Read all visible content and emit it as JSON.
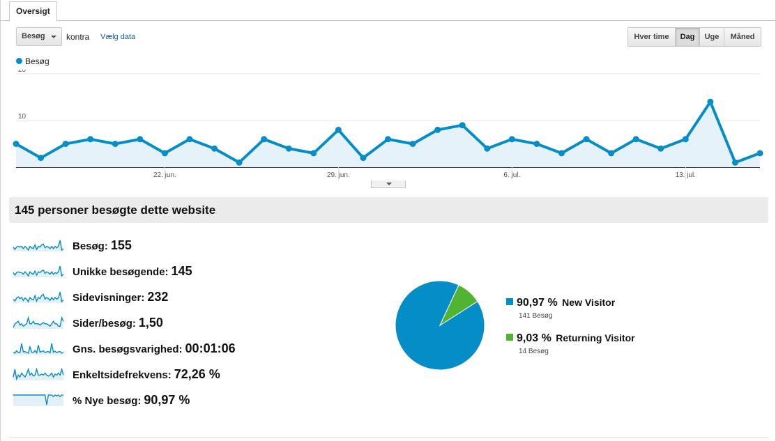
{
  "tabs": [
    {
      "label": "Oversigt",
      "active": true
    }
  ],
  "toolbar": {
    "metric_select": "Besøg",
    "versus_label": "kontra",
    "choose_metric_link": "Vælg data",
    "period_buttons": [
      {
        "label": "Hver time",
        "active": false
      },
      {
        "label": "Dag",
        "active": true
      },
      {
        "label": "Uge",
        "active": false
      },
      {
        "label": "Måned",
        "active": false
      }
    ]
  },
  "chart_data": [
    {
      "type": "area",
      "series": [
        {
          "name": "Besøg",
          "color": "#058dc7",
          "values": [
            5,
            2,
            5,
            6,
            5,
            6,
            3,
            6,
            4,
            1,
            6,
            4,
            3,
            8,
            2,
            6,
            5,
            8,
            9,
            4,
            6,
            5,
            3,
            6,
            3,
            6,
            4,
            6,
            14,
            1,
            3
          ]
        }
      ],
      "x_start": "2013-06-16",
      "x_end": "2013-07-16",
      "x_ticks": [
        "22. jun.",
        "29. jun.",
        "6. jul.",
        "13. jul."
      ],
      "y_ticks": [
        10,
        20
      ],
      "ylim": [
        0,
        20
      ],
      "grid": true,
      "legend": "top-left"
    },
    {
      "type": "pie",
      "slices": [
        {
          "label": "New Visitor",
          "percent_label": "90,97 %",
          "value": 90.97,
          "count_label": "141 Besøg",
          "color": "#058dc7"
        },
        {
          "label": "Returning Visitor",
          "percent_label": "9,03 %",
          "value": 9.03,
          "count_label": "14 Besøg",
          "color": "#50b432"
        }
      ]
    }
  ],
  "summary": {
    "headline": "145 personer besøgte dette website",
    "metrics": [
      {
        "label": "Besøg:",
        "value": "155",
        "spark": [
          5,
          2,
          5,
          6,
          5,
          6,
          3,
          6,
          4,
          1,
          6,
          4,
          3,
          8,
          2,
          6,
          5,
          8,
          9,
          4,
          6,
          5,
          3,
          6,
          3,
          6,
          4,
          6,
          14,
          1,
          3
        ]
      },
      {
        "label": "Unikke besøgende:",
        "value": "145",
        "spark": [
          5,
          2,
          5,
          6,
          5,
          5,
          3,
          6,
          4,
          1,
          6,
          4,
          3,
          7,
          2,
          6,
          5,
          7,
          8,
          4,
          6,
          5,
          3,
          6,
          3,
          5,
          4,
          6,
          13,
          1,
          3
        ]
      },
      {
        "label": "Sidevisninger:",
        "value": "232",
        "spark": [
          6,
          3,
          8,
          10,
          7,
          9,
          4,
          8,
          6,
          2,
          9,
          6,
          5,
          12,
          3,
          9,
          7,
          12,
          14,
          6,
          9,
          7,
          4,
          9,
          5,
          9,
          6,
          8,
          18,
          2,
          5
        ]
      },
      {
        "label": "Sider/besøg:",
        "value": "1,50",
        "spark": [
          1.2,
          1.5,
          1.6,
          1.7,
          1.4,
          1.5,
          1.3,
          1.4,
          1.5,
          2,
          1.5,
          1.5,
          1.7,
          1.5,
          1.5,
          1.5,
          1.4,
          1.5,
          1.6,
          1.5,
          1.5,
          1.4,
          1.3,
          1.5,
          1.7,
          1.5,
          1.5,
          1.3,
          1.3,
          2,
          1.7
        ]
      },
      {
        "label": "Gns. besøgsvarighed:",
        "value": "00:01:06",
        "spark": [
          40,
          10,
          80,
          30,
          20,
          300,
          50,
          60,
          30,
          10,
          200,
          40,
          30,
          90,
          20,
          250,
          40,
          60,
          80,
          30,
          50,
          60,
          20,
          300,
          40,
          70,
          30,
          50,
          60,
          10,
          40
        ]
      },
      {
        "label": "Enkeltsidefrekvens:",
        "value": "72,26 %",
        "spark": [
          60,
          100,
          50,
          70,
          60,
          80,
          70,
          60,
          75,
          100,
          70,
          80,
          65,
          70,
          100,
          70,
          70,
          75,
          70,
          80,
          70,
          65,
          70,
          80,
          60,
          75,
          70,
          80,
          70,
          100,
          70
        ]
      },
      {
        "label": "% Nye besøg:",
        "value": "90,97 %",
        "spark": [
          100,
          100,
          100,
          100,
          100,
          100,
          100,
          100,
          100,
          100,
          100,
          100,
          100,
          100,
          100,
          100,
          100,
          100,
          100,
          100,
          40,
          100,
          100,
          100,
          90,
          100,
          95,
          100,
          90,
          100,
          100
        ]
      }
    ]
  }
}
